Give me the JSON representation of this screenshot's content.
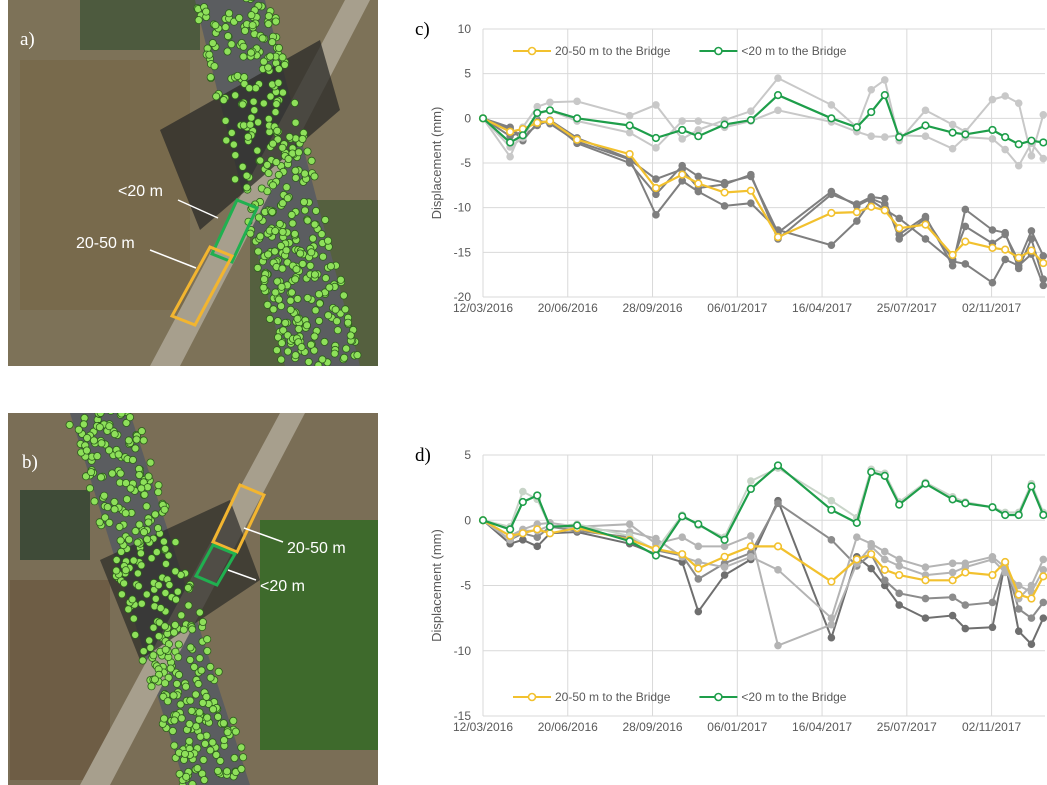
{
  "maps": [
    {
      "label": "a)",
      "annotations": [
        "<20 m",
        "20-50 m"
      ]
    },
    {
      "label": "b)",
      "annotations": [
        "20-50 m",
        "<20 m"
      ]
    }
  ],
  "chart_data": [
    {
      "type": "line",
      "label": "c)",
      "y_label": "Displacement (mm)",
      "x": [
        "12/03/2016",
        "13/04/2016",
        "28/04/2016",
        "15/05/2016",
        "30/05/2016",
        "01/07/2016",
        "01/09/2016",
        "02/10/2016",
        "02/11/2016",
        "21/11/2016",
        "22/12/2016",
        "22/01/2017",
        "23/02/2017",
        "27/04/2017",
        "27/05/2017",
        "13/06/2017",
        "29/06/2017",
        "16/07/2017",
        "16/08/2017",
        "17/09/2017",
        "02/10/2017",
        "03/11/2017",
        "18/11/2017",
        "04/12/2017",
        "19/12/2017",
        "02/01/2018"
      ],
      "xlim": [
        "12/03/2016",
        "04/01/2018"
      ],
      "xticks": [
        "12/03/2016",
        "20/06/2016",
        "28/09/2016",
        "06/01/2017",
        "16/04/2017",
        "25/07/2017",
        "02/11/2017"
      ],
      "ylim": [
        -20,
        10
      ],
      "yticks": [
        -20,
        -15,
        -10,
        -5,
        0,
        5,
        10
      ],
      "grid": true,
      "legend": "top",
      "series": [
        {
          "color": "#7f7f7f",
          "values": [
            0,
            -1,
            -2.5,
            -0.5,
            -0.3,
            -2.8,
            -5,
            -8.5,
            -5.3,
            -6.5,
            -7.2,
            -6.5,
            -12.8,
            -8.2,
            -9.8,
            -9,
            -9.6,
            -13,
            -11,
            -16.5,
            -10.2,
            -12.5,
            -12.8,
            -16.8,
            -13.5,
            -18
          ]
        },
        {
          "color": "#7f7f7f",
          "values": [
            0,
            -1.2,
            -2,
            -0.8,
            -0.2,
            -2.2,
            -4.5,
            -10.8,
            -7,
            -8.2,
            -9.8,
            -9.5,
            -12.5,
            -14.2,
            -11.5,
            -9.2,
            -10.2,
            -11.2,
            -13.5,
            -16,
            -16.3,
            -18.4,
            -15.8,
            -16.5,
            -15.2,
            -18.7
          ]
        },
        {
          "color": "#7f7f7f",
          "values": [
            0,
            -2,
            -1.5,
            -0.2,
            -0.6,
            -2.6,
            -4.6,
            -6.8,
            -5.7,
            -7.8,
            -7.4,
            -6.3,
            -13.5,
            -8.5,
            -9.6,
            -8.8,
            -9,
            -13.5,
            -11.2,
            -15.8,
            -12.1,
            -14,
            -13,
            -16,
            -12.6,
            -15.4
          ]
        },
        {
          "color": "#c8c8c8",
          "values": [
            0,
            -4.3,
            -1,
            1.3,
            1.8,
            1.9,
            0.3,
            1.5,
            -2.3,
            -1.3,
            -0.2,
            0.8,
            4.5,
            1.5,
            -1,
            3.2,
            4.3,
            -2.5,
            0.9,
            -0.7,
            -1.5,
            2.1,
            2.5,
            1.7,
            -4.2,
            0.4
          ]
        },
        {
          "color": "#c8c8c8",
          "values": [
            0,
            -3.2,
            -2.2,
            0.5,
            0.9,
            -0.3,
            -1.6,
            -3.3,
            -0.3,
            -0.3,
            -1,
            -0.3,
            0.9,
            -0.4,
            -1.5,
            -2,
            -2.1,
            -1.9,
            -2,
            -3.4,
            -2.1,
            -2.3,
            -3.5,
            -5.3,
            -2.8,
            -4.5
          ]
        },
        {
          "name": "20-50 m to the Bridge",
          "color": "#f2c12e",
          "values": [
            0,
            -1.5,
            -1.2,
            -0.5,
            -0.3,
            -2.4,
            -4,
            -7.8,
            -6.3,
            -7.3,
            -8.3,
            -8.1,
            -13.3,
            -10.6,
            -10.5,
            -9.9,
            -10.3,
            -12.3,
            -11.9,
            -15.3,
            -13.8,
            -14.5,
            -14.7,
            -15.6,
            -14.8,
            -16.2
          ]
        },
        {
          "name": "<20 m to the Bridge",
          "color": "#1e9e4a",
          "values": [
            0,
            -2.7,
            -1.9,
            0.6,
            0.9,
            0,
            -0.8,
            -2.2,
            -1.3,
            -2,
            -0.7,
            -0.2,
            2.6,
            0,
            -1,
            0.7,
            2.6,
            -2.1,
            -0.8,
            -1.6,
            -1.8,
            -1.3,
            -2.1,
            -2.9,
            -2.5,
            -2.7
          ]
        }
      ]
    },
    {
      "type": "line",
      "label": "d)",
      "y_label": "Displacement (mm)",
      "x": [
        "12/03/2016",
        "13/04/2016",
        "28/04/2016",
        "15/05/2016",
        "30/05/2016",
        "01/07/2016",
        "01/09/2016",
        "02/10/2016",
        "02/11/2016",
        "21/11/2016",
        "22/12/2016",
        "22/01/2017",
        "23/02/2017",
        "27/04/2017",
        "27/05/2017",
        "13/06/2017",
        "29/06/2017",
        "16/07/2017",
        "16/08/2017",
        "17/09/2017",
        "02/10/2017",
        "03/11/2017",
        "18/11/2017",
        "04/12/2017",
        "19/12/2017",
        "02/01/2018"
      ],
      "xlim": [
        "12/03/2016",
        "04/01/2018"
      ],
      "xticks": [
        "12/03/2016",
        "20/06/2016",
        "28/09/2016",
        "06/01/2017",
        "16/04/2017",
        "25/07/2017",
        "02/11/2017"
      ],
      "ylim": [
        -15,
        5
      ],
      "yticks": [
        -15,
        -10,
        -5,
        0,
        5
      ],
      "grid": true,
      "legend": "bottom",
      "series": [
        {
          "color": "#6f6f6f",
          "values": [
            0,
            -1.8,
            -1.5,
            -2,
            -1,
            -0.9,
            -1.8,
            -2.6,
            -3.2,
            -7,
            -4.2,
            -3,
            1.5,
            -9,
            -2.8,
            -3.7,
            -5,
            -6.5,
            -7.5,
            -7.3,
            -8.3,
            -8.2,
            -3.2,
            -8.5,
            -9.5,
            -7.5
          ]
        },
        {
          "color": "#8c8c8c",
          "values": [
            0,
            -1.5,
            -1,
            -1.3,
            -0.5,
            -0.8,
            -1.3,
            -2.3,
            -2.7,
            -4.5,
            -3.3,
            -2.5,
            1.3,
            -1.5,
            -3.5,
            -2.6,
            -4.6,
            -5.6,
            -6,
            -5.9,
            -6.5,
            -6.3,
            -3.3,
            -6.8,
            -7.5,
            -6.3
          ]
        },
        {
          "color": "#b4b4b4",
          "values": [
            0,
            -1.2,
            -0.7,
            -0.3,
            -0.2,
            -0.5,
            -0.3,
            -1.8,
            -1.3,
            -2,
            -2,
            -1.2,
            -9.6,
            -8,
            -3.3,
            -2,
            -3,
            -3.5,
            -4.2,
            -4,
            -3.6,
            -3,
            -4,
            -5,
            -5.5,
            -3.8
          ]
        },
        {
          "color": "#b4b4b4",
          "values": [
            0,
            -1.5,
            -0.8,
            -0.8,
            -0.4,
            -0.6,
            -0.9,
            -1.4,
            -2.8,
            -3.2,
            -3.6,
            -2.8,
            -3.8,
            -7.5,
            -1.3,
            -1.8,
            -2.4,
            -3,
            -3.6,
            -3.3,
            -3.3,
            -2.8,
            -3.6,
            -6,
            -5,
            -3
          ]
        },
        {
          "color": "#c8d4c8",
          "values": [
            0,
            -0.5,
            2.2,
            1.6,
            -0.5,
            -0.3,
            -1.2,
            -2.3,
            0.4,
            -0.4,
            -1.3,
            3,
            4,
            1.5,
            0.2,
            3.9,
            3.6,
            1.4,
            2.9,
            1.8,
            1.4,
            1,
            0.6,
            0.6,
            2.8,
            0.6
          ]
        },
        {
          "name": "20-50 m to the Bridge",
          "color": "#f2c12e",
          "values": [
            0,
            -1.2,
            -1,
            -0.7,
            -1,
            -0.6,
            -1.5,
            -2.2,
            -2.6,
            -3.7,
            -2.8,
            -2,
            -2,
            -4.7,
            -3,
            -2.6,
            -3.8,
            -4.2,
            -4.6,
            -4.6,
            -4,
            -4.2,
            -3.2,
            -5.7,
            -6,
            -4.3
          ]
        },
        {
          "name": "<20 m to the Bridge",
          "color": "#1e9e4a",
          "values": [
            0,
            -0.7,
            1.4,
            1.9,
            -0.5,
            -0.4,
            -1.6,
            -2.7,
            0.3,
            -0.3,
            -1.5,
            2.4,
            4.2,
            0.8,
            -0.2,
            3.7,
            3.4,
            1.2,
            2.8,
            1.6,
            1.3,
            1,
            0.4,
            0.4,
            2.6,
            0.4
          ]
        }
      ]
    }
  ]
}
